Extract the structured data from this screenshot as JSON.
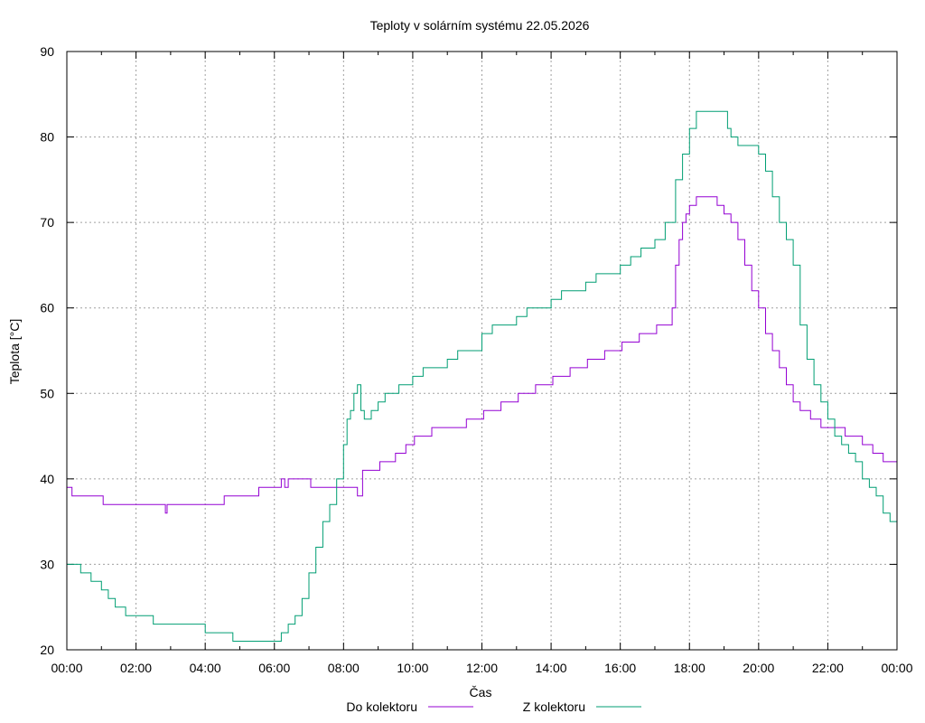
{
  "chart_data": {
    "type": "line",
    "title": "Teploty v solárním systému 22.05.2026",
    "xlabel": "Čas",
    "ylabel": "Teplota [°C]",
    "xlim": [
      0,
      24
    ],
    "ylim": [
      20,
      90
    ],
    "grid": true,
    "legend_position": "bottom",
    "x_tick_labels": [
      "00:00",
      "02:00",
      "04:00",
      "06:00",
      "08:00",
      "10:00",
      "12:00",
      "14:00",
      "16:00",
      "18:00",
      "20:00",
      "22:00",
      "00:00"
    ],
    "y_ticks": [
      20,
      30,
      40,
      50,
      60,
      70,
      80,
      90
    ],
    "series": [
      {
        "name": "Do kolektoru",
        "color": "#9400d3",
        "x": [
          0,
          0.1,
          0.15,
          1.0,
          1.05,
          1.5,
          1.55,
          2.8,
          2.85,
          2.9,
          3.0,
          4.5,
          4.55,
          5.0,
          5.05,
          5.5,
          5.55,
          6.0,
          6.05,
          6.2,
          6.3,
          6.4,
          6.5,
          7.0,
          7.05,
          7.8,
          8.0,
          8.2,
          8.4,
          8.5,
          8.55,
          9.0,
          9.05,
          9.3,
          9.5,
          9.6,
          9.8,
          10.0,
          10.05,
          10.5,
          10.55,
          11.0,
          11.05,
          11.5,
          11.55,
          12.0,
          12.05,
          12.5,
          12.55,
          13.0,
          13.05,
          13.5,
          13.55,
          14.0,
          14.05,
          14.5,
          14.55,
          15.0,
          15.05,
          15.5,
          15.55,
          16.0,
          16.05,
          16.5,
          16.55,
          17.0,
          17.05,
          17.4,
          17.5,
          17.6,
          17.7,
          17.8,
          17.9,
          18.0,
          18.2,
          18.4,
          18.6,
          18.8,
          19.0,
          19.2,
          19.4,
          19.6,
          19.8,
          20.0,
          20.2,
          20.4,
          20.6,
          20.8,
          21.0,
          21.2,
          21.5,
          21.8,
          22.0,
          22.5,
          23.0,
          23.3,
          23.6,
          24.0
        ],
        "values": [
          39,
          39,
          38,
          38,
          37,
          37,
          37,
          37,
          36,
          37,
          37,
          37,
          38,
          38,
          38,
          38,
          39,
          39,
          39,
          40,
          39,
          40,
          40,
          40,
          39,
          39,
          39,
          39,
          38,
          38,
          41,
          41,
          42,
          42,
          43,
          43,
          44,
          44,
          45,
          45,
          46,
          46,
          46,
          46,
          47,
          47,
          48,
          48,
          49,
          49,
          50,
          50,
          51,
          51,
          52,
          52,
          53,
          53,
          54,
          54,
          55,
          55,
          56,
          56,
          57,
          57,
          58,
          58,
          60,
          65,
          68,
          70,
          71,
          72,
          73,
          73,
          73,
          72,
          71,
          70,
          68,
          65,
          62,
          60,
          57,
          55,
          53,
          51,
          49,
          48,
          47,
          46,
          46,
          45,
          44,
          43,
          42,
          41
        ]
      },
      {
        "name": "Z kolektoru",
        "color": "#009e73",
        "x": [
          0,
          0.2,
          0.4,
          0.5,
          0.7,
          1.0,
          1.2,
          1.4,
          1.6,
          1.7,
          2.0,
          2.3,
          2.5,
          3.0,
          3.5,
          3.8,
          4.0,
          4.5,
          4.8,
          5.0,
          5.5,
          6.0,
          6.2,
          6.4,
          6.6,
          6.8,
          7.0,
          7.2,
          7.4,
          7.6,
          7.8,
          8.0,
          8.1,
          8.2,
          8.3,
          8.4,
          8.5,
          8.6,
          8.8,
          9.0,
          9.2,
          9.4,
          9.6,
          9.8,
          10.0,
          10.3,
          10.6,
          11.0,
          11.3,
          11.6,
          12.0,
          12.3,
          12.6,
          13.0,
          13.3,
          13.6,
          14.0,
          14.3,
          14.6,
          15.0,
          15.3,
          15.6,
          16.0,
          16.3,
          16.6,
          17.0,
          17.3,
          17.6,
          17.8,
          18.0,
          18.2,
          18.4,
          18.6,
          18.8,
          19.0,
          19.1,
          19.2,
          19.4,
          19.6,
          19.8,
          20.0,
          20.2,
          20.4,
          20.6,
          20.8,
          21.0,
          21.2,
          21.4,
          21.6,
          21.8,
          22.0,
          22.2,
          22.4,
          22.6,
          22.8,
          23.0,
          23.2,
          23.4,
          23.6,
          23.8,
          24.0
        ],
        "values": [
          30,
          30,
          29,
          29,
          28,
          27,
          26,
          25,
          25,
          24,
          24,
          24,
          23,
          23,
          23,
          23,
          22,
          22,
          21,
          21,
          21,
          21,
          22,
          23,
          24,
          26,
          29,
          32,
          35,
          37,
          40,
          44,
          47,
          48,
          50,
          51,
          48,
          47,
          48,
          49,
          50,
          50,
          51,
          51,
          52,
          53,
          53,
          54,
          55,
          55,
          57,
          58,
          58,
          59,
          60,
          60,
          61,
          62,
          62,
          63,
          64,
          64,
          65,
          66,
          67,
          68,
          70,
          75,
          78,
          81,
          83,
          83,
          83,
          83,
          83,
          81,
          80,
          79,
          79,
          79,
          78,
          76,
          73,
          70,
          68,
          65,
          58,
          54,
          51,
          49,
          47,
          45,
          44,
          43,
          42,
          40,
          39,
          38,
          36,
          35,
          34
        ]
      }
    ]
  }
}
